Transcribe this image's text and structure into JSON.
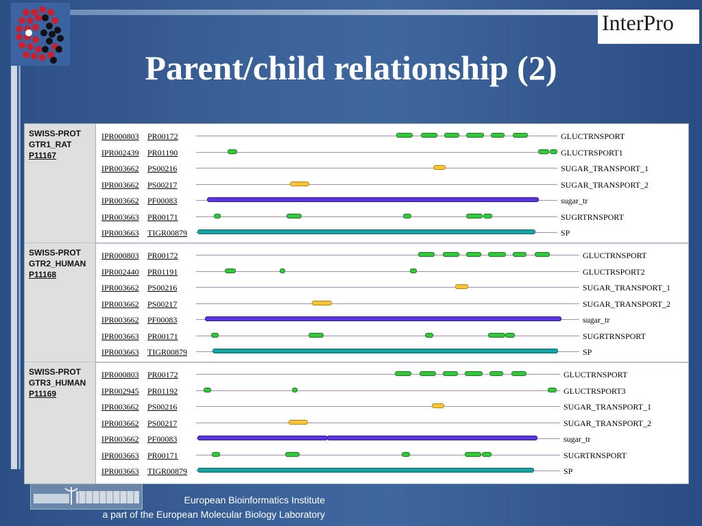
{
  "header": {
    "title": "Parent/child relationship (2)",
    "brand": "InterPro"
  },
  "footer": {
    "line1": "European Bioinformatics Institute",
    "line2": "a part of the European Molecular Biology Laboratory"
  },
  "colors": {
    "green": "#33c73b",
    "yellow": "#f7c438",
    "purple": "#5a36e0",
    "teal": "#17a3a3",
    "line": "#a78bbd"
  },
  "blocks": [
    {
      "db": "SWISS-PROT",
      "entry": "GTR1_RAT",
      "accession": "P11167",
      "rows": [
        {
          "ipr": "IPR000803",
          "sig": "PR00172",
          "label": "GLUCTRNSPORT",
          "color": "green"
        },
        {
          "ipr": "IPR002439",
          "sig": "PR01190",
          "label": "GLUCTRSPORT1",
          "color": "green"
        },
        {
          "ipr": "IPR003662",
          "sig": "PS00216",
          "label": "SUGAR_TRANSPORT_1",
          "color": "yellow"
        },
        {
          "ipr": "IPR003662",
          "sig": "PS00217",
          "label": "SUGAR_TRANSPORT_2",
          "color": "yellow"
        },
        {
          "ipr": "IPR003662",
          "sig": "PF00083",
          "label": "sugar_tr",
          "color": "purple"
        },
        {
          "ipr": "IPR003663",
          "sig": "PR00171",
          "label": "SUGRTRNSPORT",
          "color": "green"
        },
        {
          "ipr": "IPR003663",
          "sig": "TIGR00879",
          "label": "SP",
          "color": "teal"
        }
      ]
    },
    {
      "db": "SWISS-PROT",
      "entry": "GTR2_HUMAN",
      "accession": "P11168",
      "rows": [
        {
          "ipr": "IPR000803",
          "sig": "PR00172",
          "label": "GLUCTRNSPORT",
          "color": "green"
        },
        {
          "ipr": "IPR002440",
          "sig": "PR01191",
          "label": "GLUCTRSPORT2",
          "color": "green"
        },
        {
          "ipr": "IPR003662",
          "sig": "PS00216",
          "label": "SUGAR_TRANSPORT_1",
          "color": "yellow"
        },
        {
          "ipr": "IPR003662",
          "sig": "PS00217",
          "label": "SUGAR_TRANSPORT_2",
          "color": "yellow"
        },
        {
          "ipr": "IPR003662",
          "sig": "PF00083",
          "label": "sugar_tr",
          "color": "purple"
        },
        {
          "ipr": "IPR003663",
          "sig": "PR00171",
          "label": "SUGRTRNSPORT",
          "color": "green"
        },
        {
          "ipr": "IPR003663",
          "sig": "TIGR00879",
          "label": "SP",
          "color": "teal"
        }
      ]
    },
    {
      "db": "SWISS-PROT",
      "entry": "GTR3_HUMAN",
      "accession": "P11169",
      "rows": [
        {
          "ipr": "IPR000803",
          "sig": "PR00172",
          "label": "GLUCTRNSPORT",
          "color": "green"
        },
        {
          "ipr": "IPR002945",
          "sig": "PR01192",
          "label": "GLUCTRSPORT3",
          "color": "green"
        },
        {
          "ipr": "IPR003662",
          "sig": "PS00216",
          "label": "SUGAR_TRANSPORT_1",
          "color": "yellow"
        },
        {
          "ipr": "IPR003662",
          "sig": "PS00217",
          "label": "SUGAR_TRANSPORT_2",
          "color": "yellow"
        },
        {
          "ipr": "IPR003662",
          "sig": "PF00083",
          "label": "sugar_tr",
          "color": "purple"
        },
        {
          "ipr": "IPR003663",
          "sig": "PR00171",
          "label": "SUGRTRNSPORT",
          "color": "green"
        },
        {
          "ipr": "IPR003663",
          "sig": "TIGR00879",
          "label": "SP",
          "color": "teal"
        }
      ]
    }
  ]
}
